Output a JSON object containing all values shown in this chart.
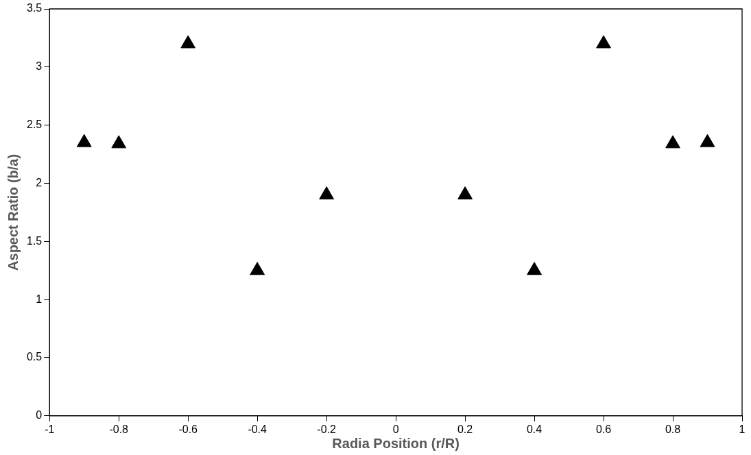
{
  "chart_data": {
    "type": "scatter",
    "xlabel": "Radia Position (r/R)",
    "ylabel": "Aspect Ratio (b/a)",
    "x": [
      -0.9,
      -0.8,
      -0.6,
      -0.4,
      -0.2,
      0.2,
      0.4,
      0.6,
      0.8,
      0.9
    ],
    "series": [
      {
        "color": "#000000",
        "values": [
          2.35,
          2.34,
          3.2,
          1.25,
          1.9,
          1.9,
          1.25,
          3.2,
          2.34,
          2.35
        ]
      }
    ],
    "xlim": [
      -1,
      1
    ],
    "xticks": [
      -1,
      -0.8,
      -0.6,
      -0.4,
      -0.2,
      0,
      0.2,
      0.4,
      0.6,
      0.8,
      1
    ],
    "ylim": [
      0,
      3.5
    ],
    "yticks": [
      0,
      0.5,
      1,
      1.5,
      2,
      2.5,
      3,
      3.5
    ],
    "grid": false,
    "legend": false,
    "marker": "triangle"
  }
}
